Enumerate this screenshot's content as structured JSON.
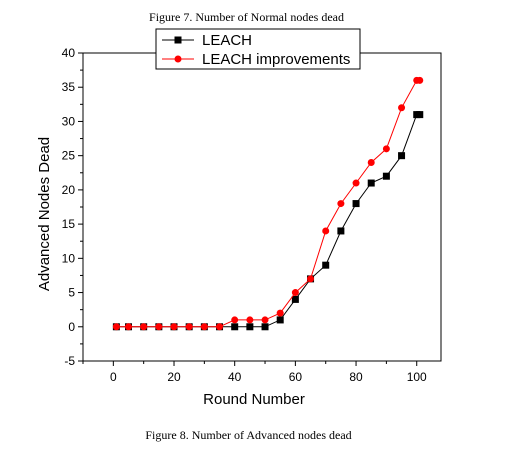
{
  "captions": {
    "top": "Figure 7. Number of Normal nodes dead",
    "bottom": "Figure 8. Number of Advanced nodes dead"
  },
  "chart_data": {
    "type": "line",
    "xlabel": "Round Number",
    "ylabel": "Advanced Nodes Dead",
    "xlim": [
      -10,
      108
    ],
    "ylim": [
      -5,
      40
    ],
    "xticks": [
      0,
      20,
      40,
      60,
      80,
      100
    ],
    "yticks": [
      -5,
      0,
      5,
      10,
      15,
      20,
      25,
      30,
      35,
      40
    ],
    "minor_x_step": 10,
    "minor_y_step": 2.5,
    "grid": false,
    "legend_position": "top-center",
    "series": [
      {
        "name": "LEACH",
        "color": "#000000",
        "marker": "square",
        "x": [
          1,
          5,
          10,
          15,
          20,
          25,
          30,
          35,
          40,
          45,
          50,
          55,
          60,
          65,
          70,
          75,
          80,
          85,
          90,
          95,
          100,
          101
        ],
        "y": [
          0,
          0,
          0,
          0,
          0,
          0,
          0,
          0,
          0,
          0,
          0,
          1,
          4,
          7,
          9,
          14,
          18,
          21,
          22,
          25,
          31,
          31
        ]
      },
      {
        "name": "LEACH improvements",
        "color": "#ff0000",
        "marker": "circle",
        "x": [
          1,
          5,
          10,
          15,
          20,
          25,
          30,
          35,
          40,
          45,
          50,
          55,
          60,
          65,
          70,
          75,
          80,
          85,
          90,
          95,
          100,
          101
        ],
        "y": [
          0,
          0,
          0,
          0,
          0,
          0,
          0,
          0,
          1,
          1,
          1,
          2,
          5,
          7,
          14,
          18,
          21,
          24,
          26,
          32,
          36,
          36
        ]
      }
    ]
  }
}
